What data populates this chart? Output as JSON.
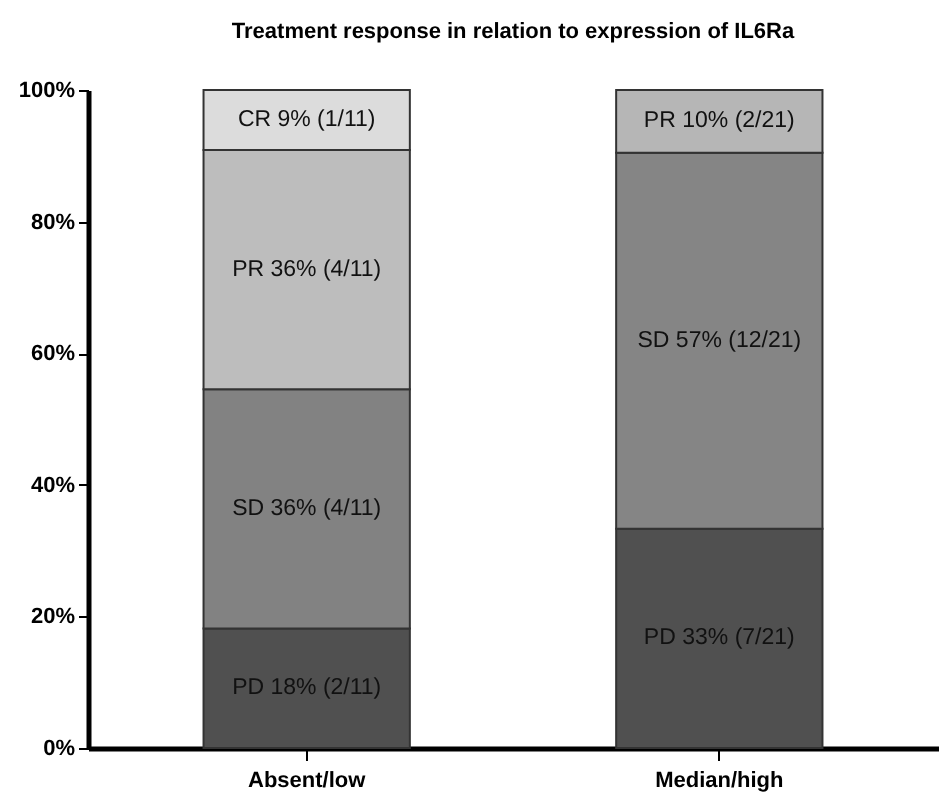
{
  "chart_data": {
    "type": "bar",
    "title": "Treatment response in relation to expression of IL6Ra",
    "stacked": true,
    "categories": [
      "Absent/low",
      "Median/high"
    ],
    "series": [
      {
        "colors": [
          "#505050",
          "#505050"
        ],
        "values": [
          18.18,
          33.33
        ],
        "value_labels": [
          "PD 18% (2/11)",
          "PD 33% (7/21)"
        ]
      },
      {
        "colors": [
          "#828282",
          "#858585"
        ],
        "values": [
          36.36,
          57.14
        ],
        "value_labels": [
          "SD 36% (4/11)",
          "SD 57% (12/21)"
        ]
      },
      {
        "colors": [
          "#bdbdbd",
          "#b6b6b6"
        ],
        "values": [
          36.36,
          9.52
        ],
        "value_labels": [
          "PR 36% (4/11)",
          "PR 10% (2/21)"
        ]
      },
      {
        "colors": [
          "#dcdcdc",
          null
        ],
        "values": [
          9.09,
          null
        ],
        "value_labels": [
          "CR 9% (1/11)",
          null
        ]
      }
    ],
    "ylim": [
      0,
      100
    ],
    "yticks": [
      {
        "value": 0,
        "label": "0%"
      },
      {
        "value": 20,
        "label": "20%"
      },
      {
        "value": 40,
        "label": "40%"
      },
      {
        "value": 60,
        "label": "60%"
      },
      {
        "value": 80,
        "label": "80%"
      },
      {
        "value": 100,
        "label": "100%"
      }
    ],
    "grid": false,
    "legend": false
  }
}
